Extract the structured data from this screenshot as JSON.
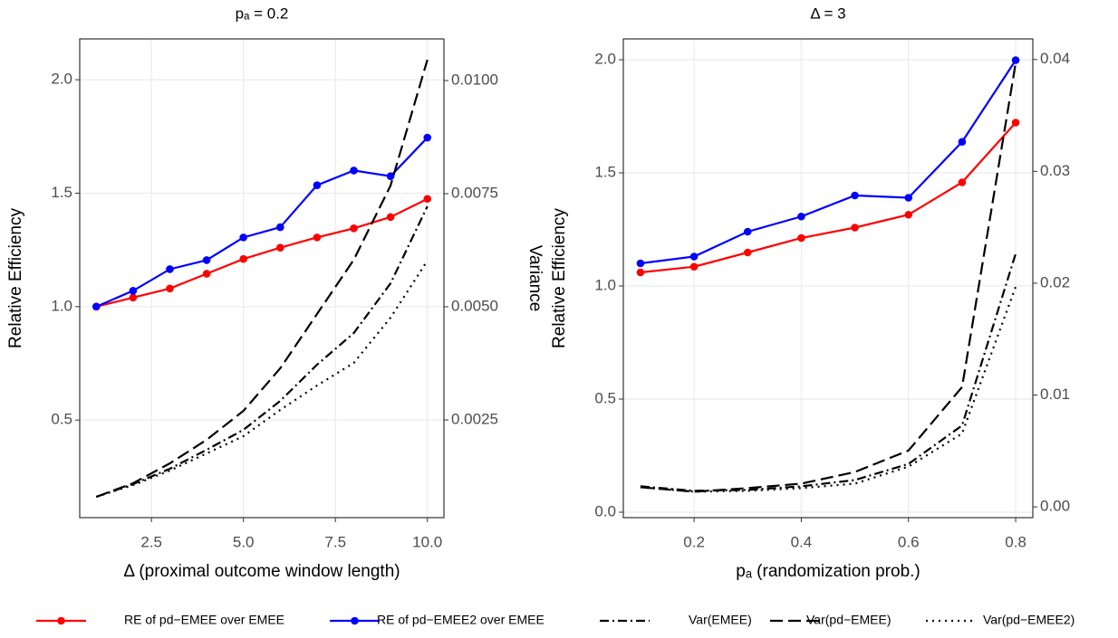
{
  "chart_data": [
    {
      "type": "line",
      "title": "pₐ = 0.2",
      "x_label": "Δ (proximal outcome window length)",
      "y_label": "Relative Efficiency",
      "y2_label": "Variance",
      "x": [
        1,
        2,
        3,
        4,
        5,
        6,
        7,
        8,
        9,
        10
      ],
      "xlim": [
        0.55,
        10.45
      ],
      "xticks": [
        2.5,
        {
          "value": 5,
          "label": "5.0"
        },
        7.5,
        {
          "value": 10,
          "label": "10.0"
        }
      ],
      "ylim": [
        0.07,
        2.18
      ],
      "yticks": [
        0.5,
        {
          "value": 1,
          "label": "1.0"
        },
        1.5,
        {
          "value": 2,
          "label": "2.0"
        }
      ],
      "y2lim": [
        0.00034,
        0.01092
      ],
      "y2ticks": [
        {
          "value": 0.0025,
          "label": "0.0025"
        },
        {
          "value": 0.005,
          "label": "0.0050"
        },
        {
          "value": 0.0075,
          "label": "0.0075"
        },
        {
          "value": 0.01,
          "label": "0.0100"
        }
      ],
      "grid": true,
      "series": [
        {
          "name": "RE of pd−EMEE over EMEE",
          "color": "#ff0000",
          "dash": "solid",
          "marker": true,
          "values": [
            1.0,
            1.04,
            1.08,
            1.145,
            1.21,
            1.26,
            1.305,
            1.345,
            1.395,
            1.475
          ]
        },
        {
          "name": "RE of pd−EMEE2 over EMEE",
          "color": "#0000ff",
          "dash": "solid",
          "marker": true,
          "values": [
            1.0,
            1.07,
            1.165,
            1.205,
            1.305,
            1.35,
            1.535,
            1.6,
            1.575,
            1.745
          ]
        },
        {
          "name": "Var(EMEE)",
          "color": "#000000",
          "dash": "dashdot",
          "marker": false,
          "axis": "y2",
          "values": [
            0.0008,
            0.00108,
            0.00142,
            0.00184,
            0.00228,
            0.00292,
            0.00372,
            0.00442,
            0.00552,
            0.00722
          ]
        },
        {
          "name": "Var(pd−EMEE)",
          "color": "#000000",
          "dash": "longdash",
          "marker": false,
          "axis": "y2",
          "values": [
            0.0008,
            0.0011,
            0.00154,
            0.00206,
            0.0027,
            0.00364,
            0.00484,
            0.00604,
            0.00768,
            0.01046
          ]
        },
        {
          "name": "Var(pd−EMEE2)",
          "color": "#000000",
          "dash": "dotted",
          "marker": false,
          "axis": "y2",
          "values": [
            0.0008,
            0.00106,
            0.00138,
            0.00176,
            0.00214,
            0.00272,
            0.00326,
            0.00376,
            0.00476,
            0.00602
          ]
        }
      ]
    },
    {
      "type": "line",
      "title": "Δ = 3",
      "x_label": "pₐ (randomization prob.)",
      "y_label": "Relative Efficiency",
      "y2_label": "Variance",
      "x": [
        0.1,
        0.2,
        0.3,
        0.4,
        0.5,
        0.6,
        0.7,
        0.8
      ],
      "xlim": [
        0.068,
        0.832
      ],
      "xticks": [
        0.2,
        0.4,
        0.6,
        0.8
      ],
      "ylim": [
        -0.024,
        2.092
      ],
      "yticks": [
        {
          "value": 0,
          "label": "0.0"
        },
        0.5,
        {
          "value": 1,
          "label": "1.0"
        },
        1.5,
        {
          "value": 2,
          "label": "2.0"
        }
      ],
      "y2lim": [
        -0.00096,
        0.04184
      ],
      "y2ticks": [
        {
          "value": 0,
          "label": "0.00"
        },
        0.01,
        0.02,
        0.03,
        0.04
      ],
      "grid": true,
      "series": [
        {
          "color": "#ff0000",
          "dash": "solid",
          "marker": true,
          "values": [
            1.06,
            1.085,
            1.148,
            1.212,
            1.258,
            1.315,
            1.458,
            1.722
          ]
        },
        {
          "color": "#0000ff",
          "dash": "solid",
          "marker": true,
          "values": [
            1.1,
            1.13,
            1.24,
            1.307,
            1.4,
            1.39,
            1.637,
            1.998
          ]
        },
        {
          "color": "#000000",
          "dash": "dashdot",
          "marker": false,
          "axis": "y2",
          "values": [
            0.00184,
            0.00144,
            0.00152,
            0.00184,
            0.0024,
            0.00384,
            0.00728,
            0.02264
          ]
        },
        {
          "color": "#000000",
          "dash": "longdash",
          "marker": false,
          "axis": "y2",
          "values": [
            0.00176,
            0.00136,
            0.00168,
            0.00208,
            0.00312,
            0.00504,
            0.01072,
            0.0397
          ]
        },
        {
          "color": "#000000",
          "dash": "dotted",
          "marker": false,
          "axis": "y2",
          "values": [
            0.00176,
            0.00136,
            0.00144,
            0.00168,
            0.00208,
            0.0036,
            0.00656,
            0.01968
          ]
        }
      ]
    }
  ]
}
